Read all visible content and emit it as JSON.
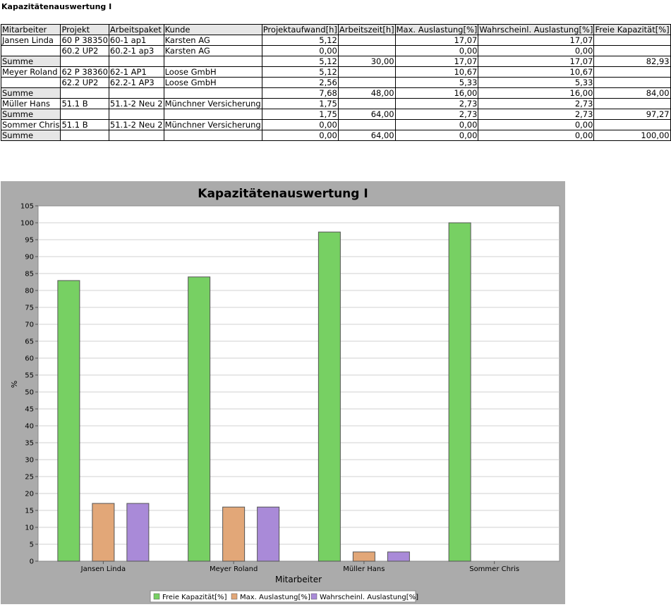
{
  "report": {
    "title": "Kapazitätenauswertung I",
    "columns": [
      "Mitarbeiter",
      "Projekt",
      "Arbeitspaket",
      "Kunde",
      "Projektaufwand[h]",
      "Arbeitszeit[h]",
      "Max. Auslastung[%]",
      "Wahrscheinl. Auslastung[%]",
      "Freie Kapazität[%]"
    ],
    "rows": [
      {
        "type": "item",
        "cells": [
          "Jansen Linda",
          "60 P 38350",
          "60-1 ap1",
          "Karsten AG",
          "5,12",
          "",
          "17,07",
          "17,07",
          ""
        ]
      },
      {
        "type": "item",
        "cells": [
          "",
          "60.2 UP2",
          "60.2-1 ap3",
          "Karsten AG",
          "0,00",
          "",
          "0,00",
          "0,00",
          ""
        ]
      },
      {
        "type": "sum",
        "cells": [
          "Summe",
          "",
          "",
          "",
          "5,12",
          "30,00",
          "17,07",
          "17,07",
          "82,93"
        ]
      },
      {
        "type": "item",
        "cells": [
          "Meyer Roland",
          "62 P 38360",
          "62-1 AP1",
          "Loose GmbH",
          "5,12",
          "",
          "10,67",
          "10,67",
          ""
        ]
      },
      {
        "type": "item",
        "cells": [
          "",
          "62.2 UP2",
          "62.2-1 AP3",
          "Loose GmbH",
          "2,56",
          "",
          "5,33",
          "5,33",
          ""
        ]
      },
      {
        "type": "sum",
        "cells": [
          "Summe",
          "",
          "",
          "",
          "7,68",
          "48,00",
          "16,00",
          "16,00",
          "84,00"
        ]
      },
      {
        "type": "item",
        "cells": [
          "Müller Hans",
          "51.1 B",
          "51.1-2 Neu 2",
          "Münchner Versicherung",
          "1,75",
          "",
          "2,73",
          "2,73",
          ""
        ]
      },
      {
        "type": "sum",
        "cells": [
          "Summe",
          "",
          "",
          "",
          "1,75",
          "64,00",
          "2,73",
          "2,73",
          "97,27"
        ]
      },
      {
        "type": "item",
        "cells": [
          "Sommer Chris",
          "51.1 B",
          "51.1-2 Neu 2",
          "Münchner Versicherung",
          "0,00",
          "",
          "0,00",
          "0,00",
          ""
        ]
      },
      {
        "type": "sum",
        "cells": [
          "Summe",
          "",
          "",
          "",
          "0,00",
          "64,00",
          "0,00",
          "0,00",
          "100,00"
        ]
      }
    ]
  },
  "chart_data": {
    "type": "bar",
    "title": "Kapazitätenauswertung I",
    "xlabel": "Mitarbeiter",
    "ylabel": "%",
    "ylim": [
      0,
      105
    ],
    "ytick_step": 5,
    "grid": true,
    "legend_position": "bottom",
    "categories": [
      "Jansen Linda",
      "Meyer Roland",
      "Müller Hans",
      "Sommer Chris"
    ],
    "series": [
      {
        "name": "Freie Kapazität[%]",
        "color": "#77d063",
        "values": [
          82.93,
          84.0,
          97.27,
          100.0
        ]
      },
      {
        "name": "Max. Auslastung[%]",
        "color": "#e2a778",
        "values": [
          17.07,
          16.0,
          2.73,
          0.0
        ]
      },
      {
        "name": "Wahrscheinl. Auslastung[%]",
        "color": "#a98ad8",
        "values": [
          17.07,
          16.0,
          2.73,
          0.0
        ]
      }
    ]
  }
}
